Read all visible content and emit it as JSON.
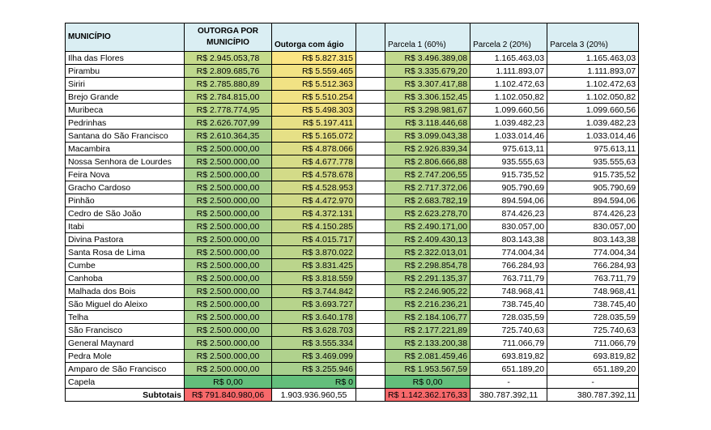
{
  "table": {
    "header": [
      "MUNICÍPIO",
      "OUTORGA POR MUNICÍPIO",
      "Outorga com ágio",
      "Parcela 1 (60%)",
      "Parcela 2 (20%)",
      "Parcela 3 (20%)"
    ],
    "rows": [
      [
        "Ilha das Flores",
        "R$ 2.945.053,78",
        "R$ 5.827.315",
        "R$ 3.496.389,08",
        "1.165.463,03",
        "1.165.463,03"
      ],
      [
        "Pirambu",
        "R$ 2.809.685,76",
        "R$ 5.559.465",
        "R$ 3.335.679,20",
        "1.111.893,07",
        "1.111.893,07"
      ],
      [
        "Siriri",
        "R$ 2.785.880,89",
        "R$ 5.512.363",
        "R$ 3.307.417,88",
        "1.102.472,63",
        "1.102.472,63"
      ],
      [
        "Brejo Grande",
        "R$ 2.784.815,00",
        "R$ 5.510.254",
        "R$ 3.306.152,45",
        "1.102.050,82",
        "1.102.050,82"
      ],
      [
        "Muribeca",
        "R$ 2.778.774,95",
        "R$ 5.498.303",
        "R$ 3.298.981,67",
        "1.099.660,56",
        "1.099.660,56"
      ],
      [
        "Pedrinhas",
        "R$ 2.626.707,99",
        "R$ 5.197.411",
        "R$ 3.118.446,68",
        "1.039.482,23",
        "1.039.482,23"
      ],
      [
        "Santana do São Francisco",
        "R$ 2.610.364,35",
        "R$ 5.165.072",
        "R$ 3.099.043,38",
        "1.033.014,46",
        "1.033.014,46"
      ],
      [
        "Macambira",
        "R$ 2.500.000,00",
        "R$ 4.878.066",
        "R$ 2.926.839,34",
        "975.613,11",
        "975.613,11"
      ],
      [
        "Nossa Senhora de Lourdes",
        "R$ 2.500.000,00",
        "R$ 4.677.778",
        "R$ 2.806.666,88",
        "935.555,63",
        "935.555,63"
      ],
      [
        "Feira Nova",
        "R$ 2.500.000,00",
        "R$ 4.578.678",
        "R$ 2.747.206,55",
        "915.735,52",
        "915.735,52"
      ],
      [
        "Gracho Cardoso",
        "R$ 2.500.000,00",
        "R$ 4.528.953",
        "R$ 2.717.372,06",
        "905.790,69",
        "905.790,69"
      ],
      [
        "Pinhão",
        "R$ 2.500.000,00",
        "R$ 4.472.970",
        "R$ 2.683.782,19",
        "894.594,06",
        "894.594,06"
      ],
      [
        "Cedro de São João",
        "R$ 2.500.000,00",
        "R$ 4.372.131",
        "R$ 2.623.278,70",
        "874.426,23",
        "874.426,23"
      ],
      [
        "Itabi",
        "R$ 2.500.000,00",
        "R$ 4.150.285",
        "R$ 2.490.171,00",
        "830.057,00",
        "830.057,00"
      ],
      [
        "Divina Pastora",
        "R$ 2.500.000,00",
        "R$ 4.015.717",
        "R$ 2.409.430,13",
        "803.143,38",
        "803.143,38"
      ],
      [
        "Santa Rosa de Lima",
        "R$ 2.500.000,00",
        "R$ 3.870.022",
        "R$ 2.322.013,01",
        "774.004,34",
        "774.004,34"
      ],
      [
        "Cumbe",
        "R$ 2.500.000,00",
        "R$ 3.831.425",
        "R$ 2.298.854,78",
        "766.284,93",
        "766.284,93"
      ],
      [
        "Canhoba",
        "R$ 2.500.000,00",
        "R$ 3.818.559",
        "R$ 2.291.135,37",
        "763.711,79",
        "763.711,79"
      ],
      [
        "Malhada dos Bois",
        "R$ 2.500.000,00",
        "R$ 3.744.842",
        "R$ 2.246.905,22",
        "748.968,41",
        "748.968,41"
      ],
      [
        "São Miguel do Aleixo",
        "R$ 2.500.000,00",
        "R$ 3.693.727",
        "R$ 2.216.236,21",
        "738.745,40",
        "738.745,40"
      ],
      [
        "Telha",
        "R$ 2.500.000,00",
        "R$ 3.640.178",
        "R$ 2.184.106,77",
        "728.035,59",
        "728.035,59"
      ],
      [
        "São Francisco",
        "R$ 2.500.000,00",
        "R$ 3.628.703",
        "R$ 2.177.221,89",
        "725.740,63",
        "725.740,63"
      ],
      [
        "General Maynard",
        "R$ 2.500.000,00",
        "R$ 3.555.334",
        "R$ 2.133.200,38",
        "711.066,79",
        "711.066,79"
      ],
      [
        "Pedra Mole",
        "R$ 2.500.000,00",
        "R$ 3.469.099",
        "R$ 2.081.459,46",
        "693.819,82",
        "693.819,82"
      ],
      [
        "Amparo de São Francisco",
        "R$ 2.500.000,00",
        "R$ 3.255.946",
        "R$ 1.953.567,59",
        "651.189,20",
        "651.189,20"
      ],
      [
        "Capela",
        "R$ 0,00",
        "R$ 0",
        "R$ 0,00",
        "-",
        "-"
      ]
    ],
    "subtotal": [
      "Subtotais",
      "R$ 791.840.980,06",
      "1.903.936.960,55",
      "R$ 1.142.362.176,33",
      "380.787.392,11",
      "380.787.392,11"
    ]
  }
}
